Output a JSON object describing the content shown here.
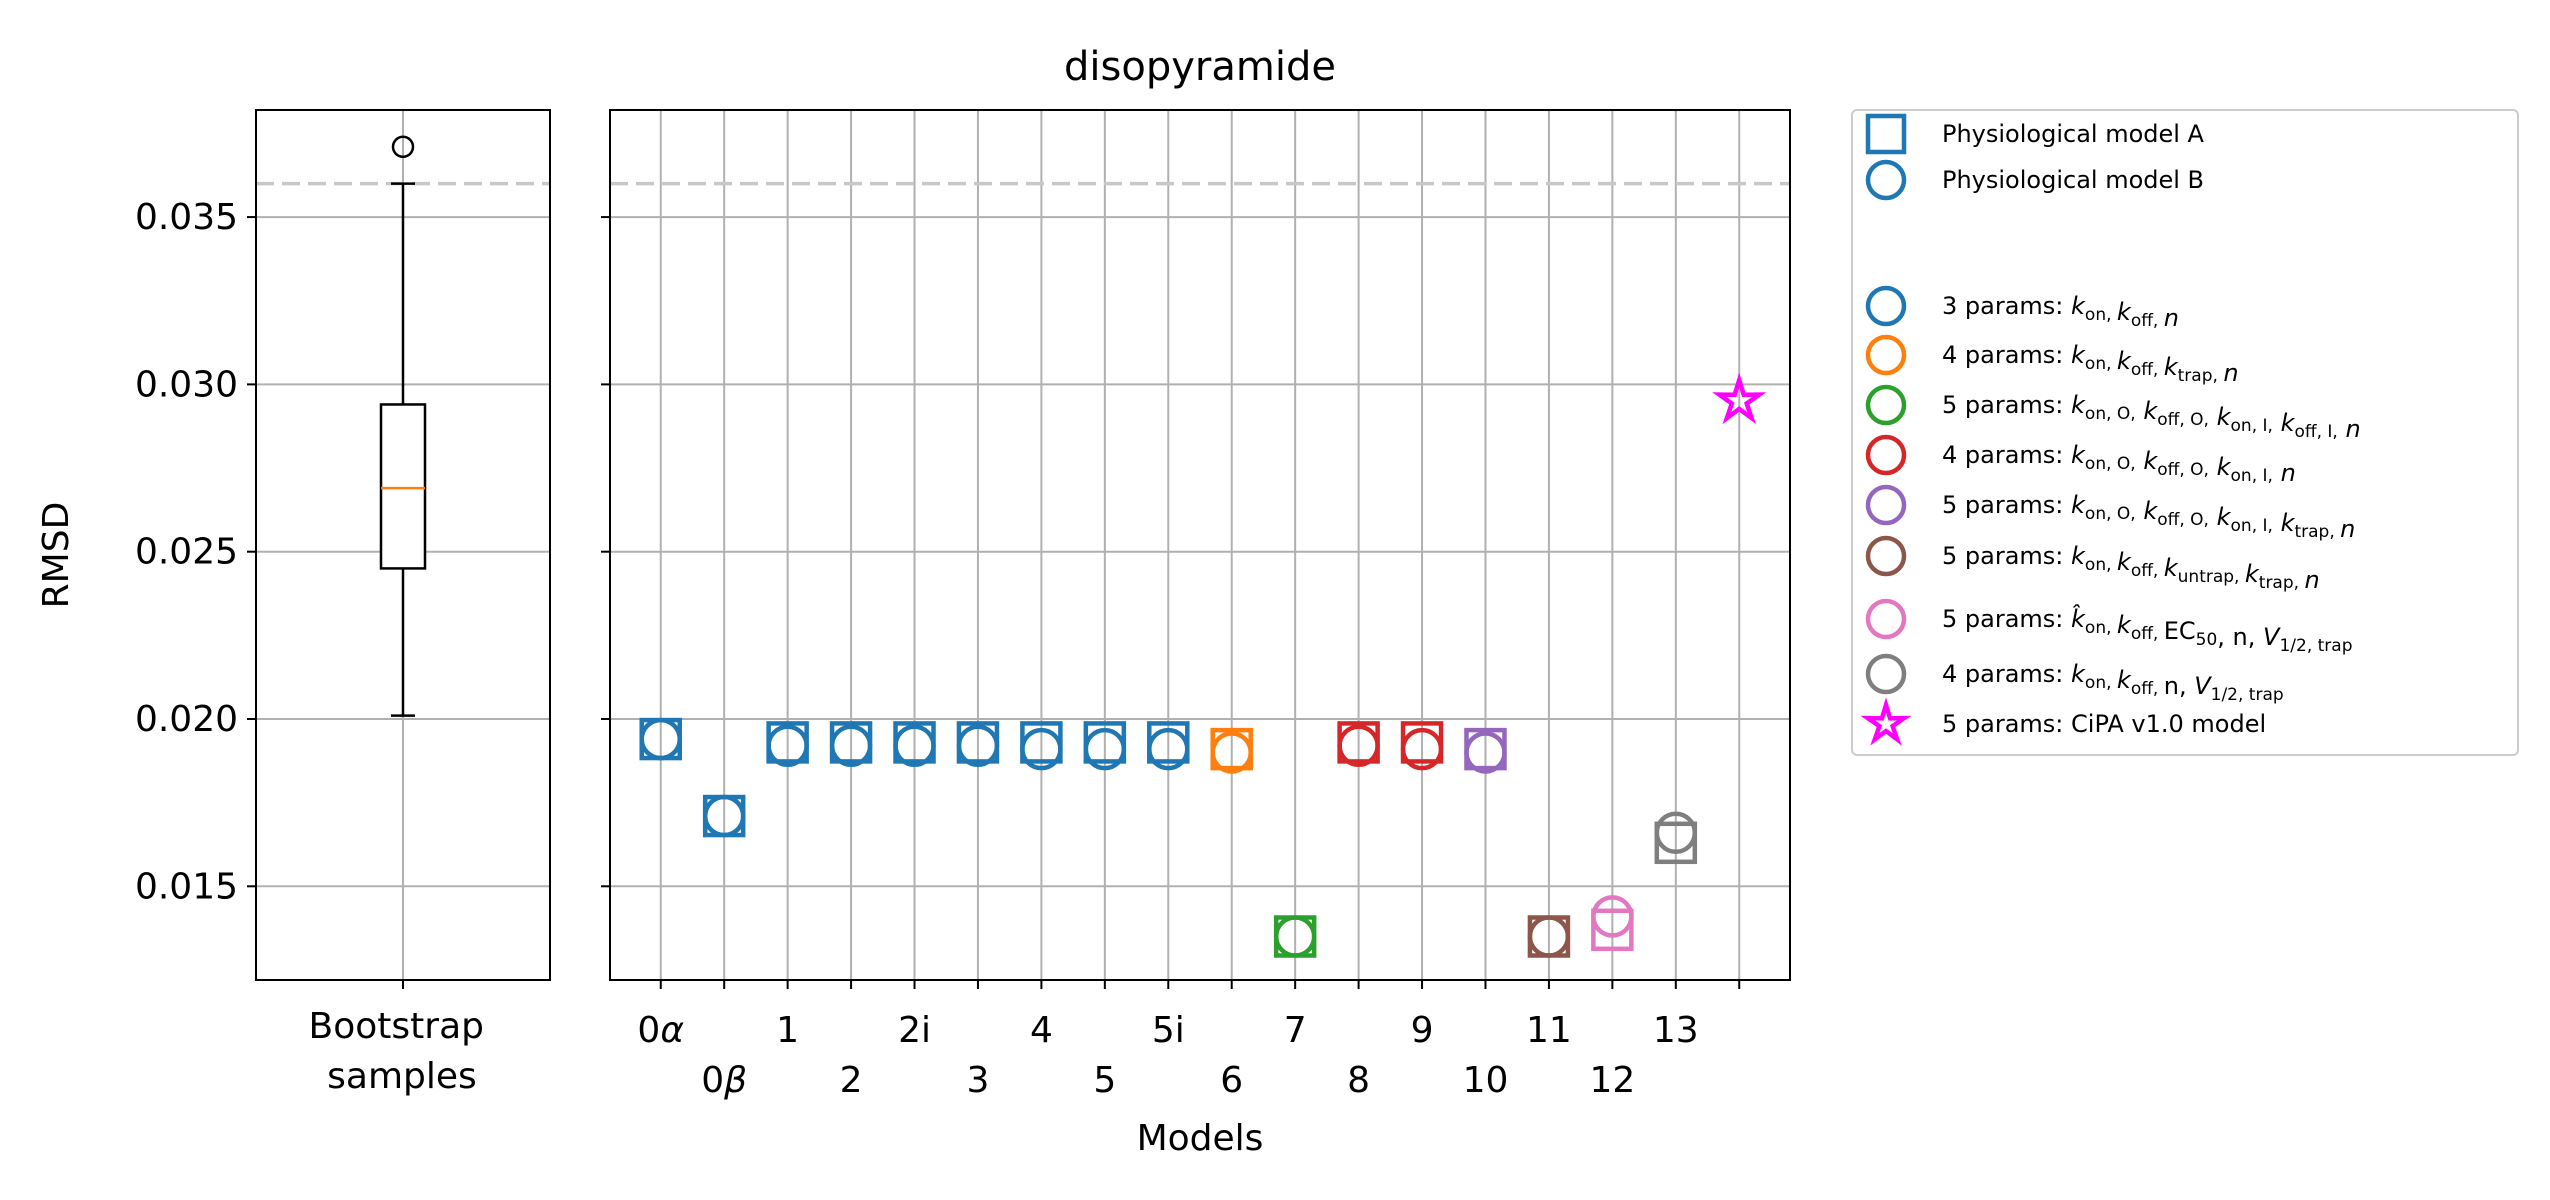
{
  "chart_data": [
    {
      "type": "boxplot",
      "title": "",
      "xlabel": "",
      "xtick_label_lines": [
        "Bootstrap",
        "samples"
      ],
      "ylabel": "RMSD",
      "ylim": [
        0.0122,
        0.0382
      ],
      "yticks": [
        "0.015",
        "0.020",
        "0.025",
        "0.030",
        "0.035"
      ],
      "grid": true,
      "box": {
        "whislo": 0.0201,
        "q1": 0.0245,
        "med": 0.0269,
        "q3": 0.0294,
        "whishi": 0.036,
        "fliers": [
          0.0371
        ]
      },
      "reference_line": 0.036
    },
    {
      "type": "scatter",
      "title": "disopyramide",
      "xlabel": "Models",
      "ylim": [
        0.0122,
        0.0382
      ],
      "grid": true,
      "reference_line": 0.036,
      "legend_position": "outside-right",
      "categories": [
        "0α",
        "0β",
        "1",
        "2",
        "2i",
        "3",
        "4",
        "5",
        "5i",
        "6",
        "7",
        "8",
        "9",
        "10",
        "11",
        "12",
        "13",
        ""
      ],
      "series": [
        {
          "name": "Physiological model A",
          "marker": "square",
          "color": "#1f77b4",
          "values": [
            0.0194,
            0.0171,
            0.0193,
            0.0193,
            0.0193,
            0.0193,
            0.0193,
            0.0193,
            0.0193,
            0.0191,
            0.0135,
            0.0193,
            0.0193,
            0.0191,
            0.0135,
            0.0137,
            0.0163,
            null
          ]
        },
        {
          "name": "Physiological model B",
          "marker": "circle",
          "color": "#1f77b4",
          "values": [
            0.0194,
            0.0171,
            0.0192,
            0.0192,
            0.0192,
            0.0192,
            0.0191,
            0.0191,
            0.0191,
            0.019,
            0.0135,
            0.0192,
            0.0191,
            0.019,
            0.0135,
            0.0141,
            0.0166,
            null
          ]
        },
        {
          "name": "5 params: CiPA v1.0 model",
          "marker": "star",
          "color": "#ff00ff",
          "values": [
            null,
            null,
            null,
            null,
            null,
            null,
            null,
            null,
            null,
            null,
            null,
            null,
            null,
            null,
            null,
            null,
            null,
            0.0295
          ]
        }
      ],
      "point_colors": [
        "#1f77b4",
        "#1f77b4",
        "#1f77b4",
        "#1f77b4",
        "#1f77b4",
        "#1f77b4",
        "#1f77b4",
        "#1f77b4",
        "#1f77b4",
        "#ff7f0e",
        "#2ca02c",
        "#d62728",
        "#d62728",
        "#9467bd",
        "#8c564b",
        "#e377c2",
        "#7f7f7f",
        "#ff00ff"
      ]
    }
  ],
  "legend": {
    "header": [
      {
        "marker": "square",
        "color": "#1f77b4",
        "label": "Physiological model A"
      },
      {
        "marker": "circle",
        "color": "#1f77b4",
        "label": "Physiological model B"
      }
    ],
    "items": [
      {
        "marker": "circle",
        "color": "#1f77b4",
        "label": "3 params: k_on, k_off, n"
      },
      {
        "marker": "circle",
        "color": "#ff7f0e",
        "label": "4 params: k_on, k_off, k_trap, n"
      },
      {
        "marker": "circle",
        "color": "#2ca02c",
        "label": "5 params: k_on,O, k_off,O, k_on,I, k_off,I, n"
      },
      {
        "marker": "circle",
        "color": "#d62728",
        "label": "4 params: k_on,O, k_off,O, k_on,I, n"
      },
      {
        "marker": "circle",
        "color": "#9467bd",
        "label": "5 params: k_on,O, k_off,O, k_on,I, k_trap, n"
      },
      {
        "marker": "circle",
        "color": "#8c564b",
        "label": "5 params: k_on, k_off, k_untrap, k_trap, n"
      },
      {
        "marker": "circle",
        "color": "#e377c2",
        "label": "5 params: k̂_on, k_off, EC50, n, V1/2,trap"
      },
      {
        "marker": "circle",
        "color": "#7f7f7f",
        "label": "4 params: k_on, k_off, n, V1/2,trap"
      },
      {
        "marker": "star",
        "color": "#ff00ff",
        "label": "5 params: CiPA v1.0 model"
      }
    ]
  }
}
